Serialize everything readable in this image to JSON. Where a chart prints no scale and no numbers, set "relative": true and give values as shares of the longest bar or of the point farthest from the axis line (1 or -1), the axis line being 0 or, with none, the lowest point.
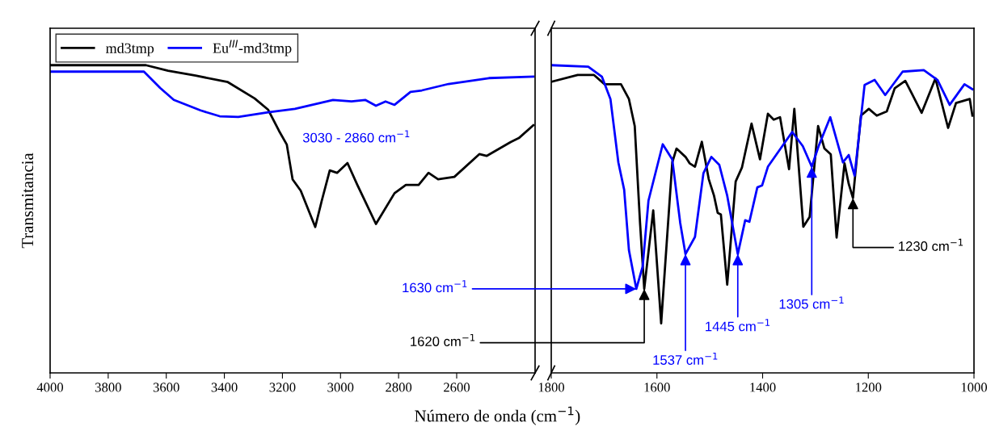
{
  "chart_data": [
    {
      "type": "line",
      "relative": true,
      "xlabel": "Número de onda (cm$^{−1}$)",
      "ylabel": "Transmitancia",
      "legend": "top left",
      "xlim": [
        4000,
        2330
      ],
      "xticks": [
        4000,
        3800,
        3600,
        3400,
        3200,
        3000,
        2800,
        2600
      ],
      "annotations": [
        {
          "text": "3030 - 2860 cm$^{−1}$",
          "x": 2945,
          "y": 0.87
        }
      ],
      "series": [
        {
          "name": "md3tmp",
          "color": "#000000",
          "x": [
            4000,
            3760,
            3670,
            3594,
            3499,
            3388,
            3296,
            3249,
            3212,
            3185,
            3165,
            3137,
            3087,
            3065,
            3037,
            3012,
            2976,
            2942,
            2878,
            2814,
            2775,
            2731,
            2697,
            2664,
            2608,
            2522,
            2497,
            2414,
            2386,
            2336
          ],
          "values": [
            1.0,
            1.0,
            1.0,
            0.982,
            0.966,
            0.945,
            0.892,
            0.855,
            0.787,
            0.742,
            0.629,
            0.592,
            0.474,
            0.558,
            0.658,
            0.65,
            0.682,
            0.611,
            0.484,
            0.584,
            0.611,
            0.611,
            0.65,
            0.629,
            0.637,
            0.711,
            0.705,
            0.75,
            0.763,
            0.805
          ]
        },
        {
          "name": "Eu$^{III}$-md3tmp",
          "color": "#0000ff",
          "x": [
            4000,
            3677,
            3621,
            3574,
            3482,
            3416,
            3352,
            3249,
            3157,
            3026,
            2962,
            2915,
            2878,
            2845,
            2814,
            2759,
            2720,
            2628,
            2489,
            2336
          ],
          "values": [
            0.979,
            0.979,
            0.926,
            0.887,
            0.853,
            0.834,
            0.832,
            0.847,
            0.858,
            0.887,
            0.882,
            0.887,
            0.868,
            0.882,
            0.871,
            0.913,
            0.918,
            0.939,
            0.958,
            0.963
          ]
        }
      ]
    },
    {
      "type": "line",
      "relative": true,
      "xlim": [
        1800,
        1000
      ],
      "xticks": [
        1800,
        1600,
        1400,
        1200,
        1000
      ],
      "annotations": [
        {
          "text": "1630 cm$^{−1}$",
          "x": 1639,
          "y": 0.273
        },
        {
          "text": "1620 cm$^{−1}$",
          "x": 1624,
          "y": 0.273
        },
        {
          "text": "1537 cm$^{−1}$",
          "x": 1546,
          "y": 0.386
        },
        {
          "text": "1445 cm$^{−1}$",
          "x": 1447,
          "y": 0.386
        },
        {
          "text": "1305 cm$^{−1}$",
          "x": 1307,
          "y": 0.67
        },
        {
          "text": "1230 cm$^{−1}$",
          "x": 1229,
          "y": 0.568
        }
      ],
      "series": [
        {
          "color": "#000000",
          "x": [
            1800,
            1750,
            1719,
            1699,
            1668,
            1653,
            1642,
            1632,
            1624,
            1607,
            1592,
            1571,
            1563,
            1546,
            1538,
            1528,
            1515,
            1502,
            1492,
            1485,
            1479,
            1467,
            1451,
            1439,
            1421,
            1405,
            1390,
            1379,
            1367,
            1350,
            1340,
            1323,
            1311,
            1295,
            1283,
            1271,
            1260,
            1245,
            1237,
            1229,
            1214,
            1199,
            1184,
            1165,
            1150,
            1130,
            1118,
            1099,
            1073,
            1049,
            1034,
            1008,
            1003
          ],
          "values": [
            0.946,
            0.968,
            0.968,
            0.938,
            0.938,
            0.89,
            0.802,
            0.488,
            0.273,
            0.528,
            0.161,
            0.684,
            0.729,
            0.702,
            0.681,
            0.67,
            0.751,
            0.63,
            0.576,
            0.52,
            0.515,
            0.287,
            0.622,
            0.668,
            0.81,
            0.694,
            0.842,
            0.823,
            0.831,
            0.662,
            0.858,
            0.475,
            0.507,
            0.802,
            0.729,
            0.71,
            0.44,
            0.681,
            0.614,
            0.568,
            0.836,
            0.858,
            0.836,
            0.85,
            0.925,
            0.949,
            0.909,
            0.845,
            0.957,
            0.796,
            0.877,
            0.89,
            0.836
          ]
        },
        {
          "color": "#0000ff",
          "x": [
            1800,
            1730,
            1704,
            1688,
            1673,
            1662,
            1653,
            1639,
            1627,
            1616,
            1589,
            1571,
            1556,
            1546,
            1528,
            1512,
            1497,
            1482,
            1467,
            1447,
            1433,
            1425,
            1410,
            1401,
            1390,
            1344,
            1324,
            1307,
            1294,
            1272,
            1248,
            1237,
            1226,
            1207,
            1188,
            1168,
            1135,
            1095,
            1069,
            1046,
            1018,
            1003
          ],
          "values": [
            1.0,
            0.995,
            0.962,
            0.89,
            0.684,
            0.595,
            0.399,
            0.273,
            0.346,
            0.56,
            0.743,
            0.694,
            0.488,
            0.386,
            0.442,
            0.649,
            0.702,
            0.676,
            0.576,
            0.386,
            0.496,
            0.491,
            0.603,
            0.609,
            0.67,
            0.783,
            0.737,
            0.67,
            0.737,
            0.831,
            0.684,
            0.708,
            0.641,
            0.936,
            0.952,
            0.903,
            0.979,
            0.984,
            0.952,
            0.871,
            0.938,
            0.922
          ]
        }
      ]
    }
  ]
}
